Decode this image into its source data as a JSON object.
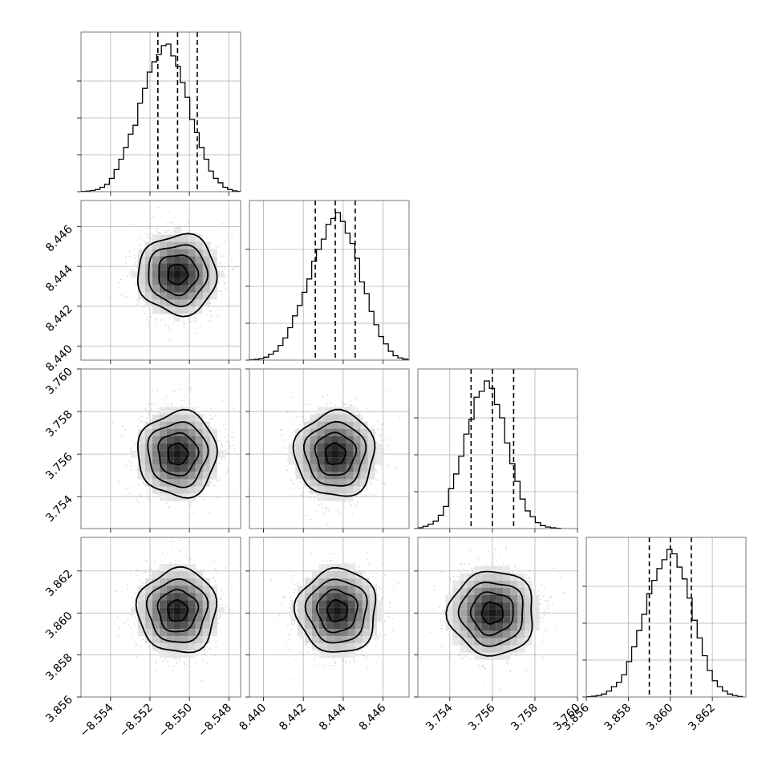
{
  "chart_data": {
    "type": "corner",
    "grid": true,
    "params": [
      {
        "key": "p0",
        "range": [
          -8.5555,
          -8.5474
        ],
        "ticks": [
          -8.554,
          -8.552,
          -8.55,
          -8.548
        ],
        "tick_labels": [
          "−8.554",
          "−8.552",
          "−8.550",
          "−8.548"
        ]
      },
      {
        "key": "p1",
        "range": [
          8.4393,
          8.4473
        ],
        "ticks": [
          8.44,
          8.442,
          8.444,
          8.446
        ],
        "tick_labels": [
          "8.440",
          "8.442",
          "8.444",
          "8.446"
        ]
      },
      {
        "key": "p2",
        "range": [
          3.7525,
          3.76
        ],
        "ticks": [
          3.754,
          3.756,
          3.758,
          3.76
        ],
        "tick_labels": [
          "3.754",
          "3.756",
          "3.758",
          "3.760"
        ]
      },
      {
        "key": "p3",
        "range": [
          3.856,
          3.8636
        ],
        "ticks": [
          3.856,
          3.858,
          3.86,
          3.862
        ],
        "tick_labels": [
          "3.856",
          "3.858",
          "3.860",
          "3.862"
        ]
      }
    ],
    "diagonal": [
      {
        "quantiles": [
          -8.5516,
          -8.5506,
          -8.5496
        ],
        "hist_x": [
          -8.5555,
          -8.55526,
          -8.55502,
          -8.55478,
          -8.55454,
          -8.5543,
          -8.55406,
          -8.55382,
          -8.55358,
          -8.55334,
          -8.5531,
          -8.55286,
          -8.55262,
          -8.55238,
          -8.55214,
          -8.5519,
          -8.55166,
          -8.55142,
          -8.55118,
          -8.55094,
          -8.5507,
          -8.55046,
          -8.55022,
          -8.54998,
          -8.54974,
          -8.5495,
          -8.54926,
          -8.54902,
          -8.54878,
          -8.54854,
          -8.5483,
          -8.54806,
          -8.54782,
          -8.54758
        ],
        "hist_values": [
          0.002,
          0.004,
          0.008,
          0.015,
          0.03,
          0.05,
          0.09,
          0.15,
          0.22,
          0.3,
          0.39,
          0.45,
          0.6,
          0.7,
          0.81,
          0.88,
          0.93,
          0.99,
          1.0,
          0.92,
          0.85,
          0.74,
          0.64,
          0.49,
          0.4,
          0.3,
          0.22,
          0.14,
          0.09,
          0.06,
          0.03,
          0.015,
          0.006,
          0.002
        ]
      },
      {
        "quantiles": [
          8.4426,
          8.4436,
          8.4446
        ],
        "hist_x": [
          8.4393,
          8.43954,
          8.43978,
          8.44002,
          8.44026,
          8.4405,
          8.44074,
          8.44098,
          8.44122,
          8.44146,
          8.4417,
          8.44194,
          8.44218,
          8.44242,
          8.44266,
          8.4429,
          8.44314,
          8.44338,
          8.44362,
          8.44386,
          8.4441,
          8.44434,
          8.44458,
          8.44482,
          8.44506,
          8.4453,
          8.44554,
          8.44578,
          8.44602,
          8.44626,
          8.4465,
          8.44674,
          8.44698,
          8.44722
        ],
        "hist_values": [
          0.002,
          0.005,
          0.01,
          0.02,
          0.04,
          0.06,
          0.1,
          0.15,
          0.22,
          0.3,
          0.37,
          0.46,
          0.55,
          0.67,
          0.75,
          0.82,
          0.92,
          0.96,
          1.0,
          0.94,
          0.86,
          0.79,
          0.69,
          0.53,
          0.45,
          0.33,
          0.24,
          0.16,
          0.11,
          0.06,
          0.03,
          0.015,
          0.007,
          0.002
        ]
      },
      {
        "quantiles": [
          3.755,
          3.756,
          3.757
        ],
        "hist_x": [
          3.7525,
          3.75274,
          3.75298,
          3.75322,
          3.75346,
          3.7537,
          3.75394,
          3.75418,
          3.75442,
          3.75466,
          3.7549,
          3.75514,
          3.75538,
          3.75562,
          3.75586,
          3.7561,
          3.75634,
          3.75658,
          3.75682,
          3.75706,
          3.7573,
          3.75754,
          3.75778,
          3.75802,
          3.75826,
          3.7585,
          3.75874,
          3.75898
        ],
        "hist_values": [
          0.005,
          0.015,
          0.03,
          0.05,
          0.09,
          0.15,
          0.27,
          0.37,
          0.49,
          0.64,
          0.74,
          0.89,
          0.93,
          1.0,
          0.95,
          0.84,
          0.75,
          0.58,
          0.44,
          0.32,
          0.2,
          0.12,
          0.08,
          0.04,
          0.02,
          0.01,
          0.005,
          0.002
        ]
      },
      {
        "quantiles": [
          3.859,
          3.86,
          3.861
        ],
        "hist_x": [
          3.856,
          3.85624,
          3.85648,
          3.85672,
          3.85696,
          3.8572,
          3.85744,
          3.85768,
          3.85792,
          3.85816,
          3.8584,
          3.85864,
          3.85888,
          3.85912,
          3.85936,
          3.8596,
          3.85984,
          3.86008,
          3.86032,
          3.86056,
          3.8608,
          3.86104,
          3.86128,
          3.86152,
          3.86176,
          3.862,
          3.86224,
          3.86248,
          3.86272,
          3.86296,
          3.8632
        ],
        "hist_values": [
          0.002,
          0.005,
          0.01,
          0.02,
          0.04,
          0.07,
          0.1,
          0.15,
          0.24,
          0.34,
          0.45,
          0.56,
          0.7,
          0.79,
          0.87,
          0.93,
          1.0,
          0.97,
          0.88,
          0.8,
          0.67,
          0.52,
          0.4,
          0.28,
          0.18,
          0.11,
          0.07,
          0.04,
          0.02,
          0.01,
          0.003
        ]
      }
    ],
    "pairs": [
      {
        "row": 1,
        "col": 0,
        "center": [
          -8.5506,
          8.4436
        ],
        "sigma": [
          0.001,
          0.001
        ]
      },
      {
        "row": 2,
        "col": 0,
        "center": [
          -8.5506,
          3.756
        ],
        "sigma": [
          0.001,
          0.001
        ]
      },
      {
        "row": 2,
        "col": 1,
        "center": [
          8.4436,
          3.756
        ],
        "sigma": [
          0.001,
          0.001
        ]
      },
      {
        "row": 3,
        "col": 0,
        "center": [
          -8.5506,
          3.8601
        ],
        "sigma": [
          0.001,
          0.001
        ]
      },
      {
        "row": 3,
        "col": 1,
        "center": [
          8.4437,
          3.8601
        ],
        "sigma": [
          0.001,
          0.001
        ]
      },
      {
        "row": 3,
        "col": 2,
        "center": [
          3.756,
          3.86
        ],
        "sigma": [
          0.001,
          0.001
        ]
      }
    ],
    "contour_levels_sigma": [
      0.5,
      1.0,
      1.5,
      2.0
    ]
  }
}
